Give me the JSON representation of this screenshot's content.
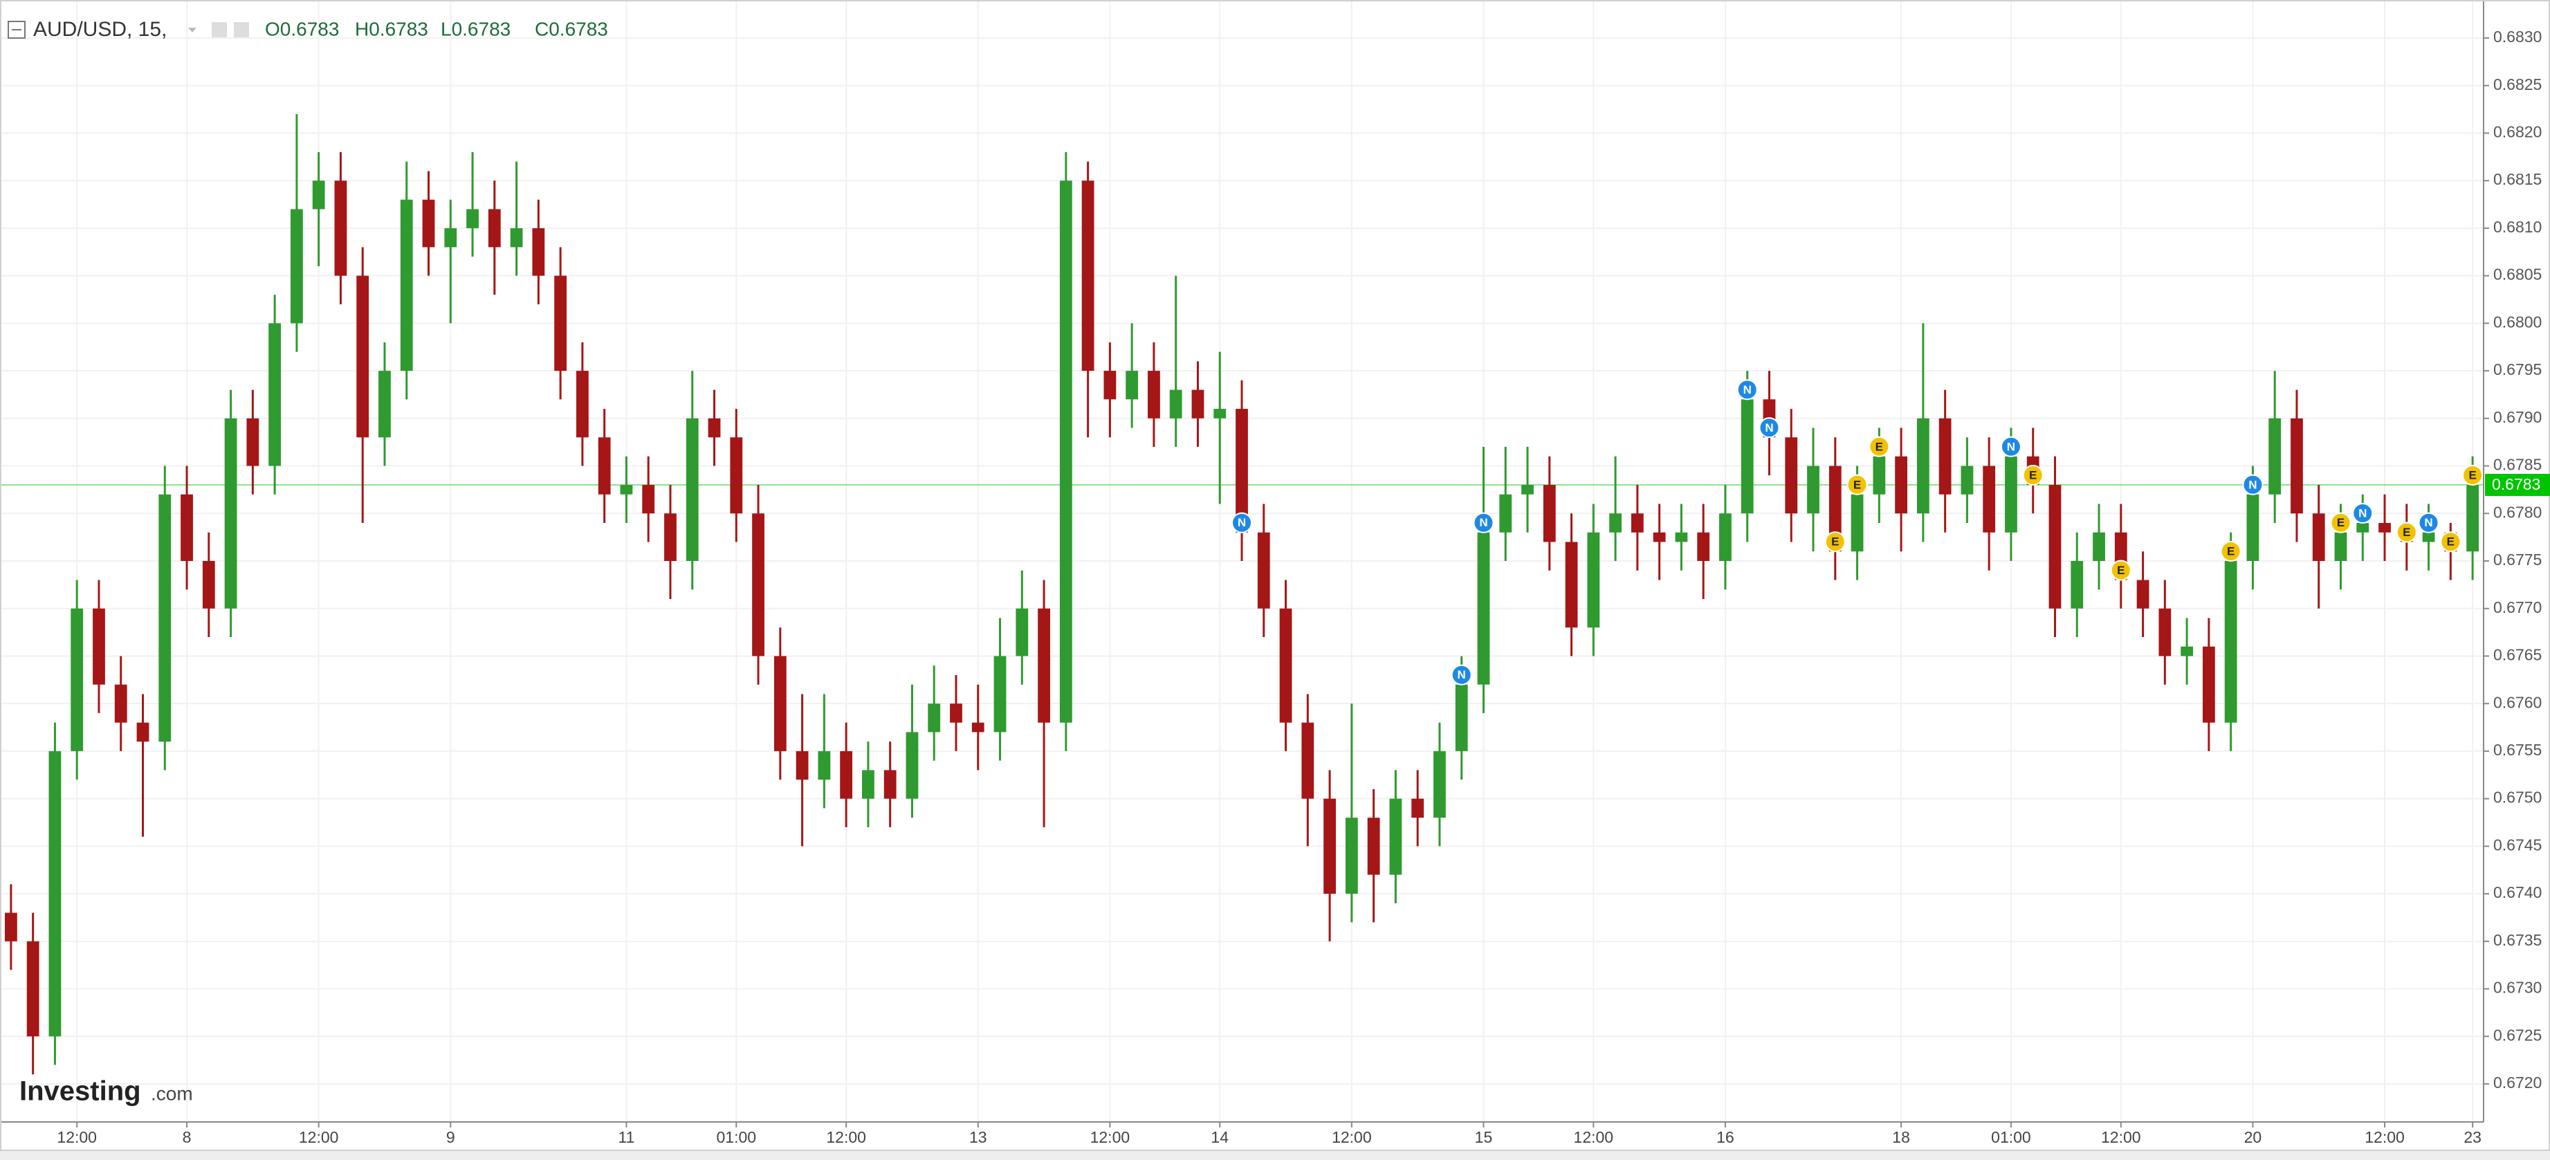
{
  "chart_data": {
    "type": "candlestick",
    "symbol": "AUD/USD, 15,",
    "legend_ohlc": [
      "O0.6783",
      "H0.6783",
      "L0.6783",
      "C0.6783"
    ],
    "logo": {
      "brand": "Investing",
      "suffix": ".com"
    },
    "up_color": "#2f9a2f",
    "down_color": "#a51616",
    "grid": true,
    "ylim": [
      0.6716,
      0.6834
    ],
    "yticks": [
      {
        "value": 0.672,
        "label": "0.6720"
      },
      {
        "value": 0.6725,
        "label": "0.6725"
      },
      {
        "value": 0.673,
        "label": "0.6730"
      },
      {
        "value": 0.6735,
        "label": "0.6735"
      },
      {
        "value": 0.674,
        "label": "0.6740"
      },
      {
        "value": 0.6745,
        "label": "0.6745"
      },
      {
        "value": 0.675,
        "label": "0.6750"
      },
      {
        "value": 0.6755,
        "label": "0.6755"
      },
      {
        "value": 0.676,
        "label": "0.6760"
      },
      {
        "value": 0.6765,
        "label": "0.6765"
      },
      {
        "value": 0.677,
        "label": "0.6770"
      },
      {
        "value": 0.6775,
        "label": "0.6775"
      },
      {
        "value": 0.678,
        "label": "0.6780"
      },
      {
        "value": 0.6785,
        "label": "0.6785"
      },
      {
        "value": 0.679,
        "label": "0.6790"
      },
      {
        "value": 0.6795,
        "label": "0.6795"
      },
      {
        "value": 0.68,
        "label": "0.6800"
      },
      {
        "value": 0.6805,
        "label": "0.6805"
      },
      {
        "value": 0.681,
        "label": "0.6810"
      },
      {
        "value": 0.6815,
        "label": "0.6815"
      },
      {
        "value": 0.682,
        "label": "0.6820"
      },
      {
        "value": 0.6825,
        "label": "0.6825"
      },
      {
        "value": 0.683,
        "label": "0.6830"
      }
    ],
    "last_price": {
      "value": 0.6783,
      "label": "0.6783",
      "color": "#00c400"
    },
    "categories": [
      null,
      null,
      null,
      "12:00",
      null,
      null,
      null,
      null,
      "8",
      null,
      null,
      null,
      null,
      null,
      "12:00",
      null,
      null,
      null,
      null,
      null,
      "9",
      null,
      null,
      null,
      null,
      null,
      null,
      null,
      "11",
      null,
      null,
      null,
      null,
      "01:00",
      null,
      null,
      null,
      null,
      "12:00",
      null,
      null,
      null,
      null,
      null,
      "13",
      null,
      null,
      null,
      null,
      null,
      "12:00",
      null,
      null,
      null,
      null,
      "14",
      null,
      null,
      null,
      null,
      null,
      "12:00",
      null,
      null,
      null,
      null,
      null,
      "15",
      null,
      null,
      null,
      null,
      "12:00",
      null,
      null,
      null,
      null,
      null,
      "16",
      null,
      null,
      null,
      null,
      null,
      null,
      null,
      "18",
      null,
      null,
      null,
      null,
      "01:00",
      null,
      null,
      null,
      null,
      "12:00",
      null,
      null,
      null,
      null,
      null,
      "20",
      null,
      null,
      null,
      null,
      null,
      "12:00",
      null,
      null,
      null,
      "23"
    ],
    "open": [
      0.6738,
      0.6735,
      0.6725,
      0.6755,
      0.677,
      0.6762,
      0.6758,
      0.6756,
      0.6782,
      0.6775,
      0.677,
      0.679,
      0.6785,
      0.68,
      0.6812,
      0.6815,
      0.6805,
      0.6788,
      0.6795,
      0.6813,
      0.6808,
      0.681,
      0.6812,
      0.6808,
      0.681,
      0.6805,
      0.6795,
      0.6788,
      0.6782,
      0.6783,
      0.678,
      0.6775,
      0.679,
      0.6788,
      0.678,
      0.6765,
      0.6755,
      0.6752,
      0.6755,
      0.675,
      0.6753,
      0.675,
      0.6757,
      0.676,
      0.6758,
      0.6757,
      0.6765,
      0.677,
      0.6758,
      0.6815,
      0.6795,
      0.6792,
      0.6795,
      0.679,
      0.6793,
      0.679,
      0.6791,
      0.6778,
      0.677,
      0.6758,
      0.675,
      0.674,
      0.6748,
      0.6742,
      0.675,
      0.6748,
      0.6755,
      0.6762,
      0.6778,
      0.6782,
      0.6783,
      0.6777,
      0.6768,
      0.6778,
      0.678,
      0.6778,
      0.6777,
      0.6778,
      0.6775,
      0.678,
      0.6792,
      0.6788,
      0.678,
      0.6785,
      0.6776,
      0.6782,
      0.6786,
      0.678,
      0.679,
      0.6782,
      0.6785,
      0.6778,
      0.6786,
      0.6783,
      0.677,
      0.6775,
      0.6778,
      0.6773,
      0.677,
      0.6765,
      0.6766,
      0.6758,
      0.6775,
      0.6782,
      0.679,
      0.678,
      0.6775,
      0.6778,
      0.6779,
      0.6778,
      0.6777,
      0.6778,
      0.6776
    ],
    "high": [
      0.6741,
      0.6738,
      0.6758,
      0.6773,
      0.6773,
      0.6765,
      0.6761,
      0.6785,
      0.6785,
      0.6778,
      0.6793,
      0.6793,
      0.6803,
      0.6822,
      0.6818,
      0.6818,
      0.6808,
      0.6798,
      0.6817,
      0.6816,
      0.6813,
      0.6818,
      0.6815,
      0.6817,
      0.6813,
      0.6808,
      0.6798,
      0.6791,
      0.6786,
      0.6786,
      0.6783,
      0.6795,
      0.6793,
      0.6791,
      0.6783,
      0.6768,
      0.6761,
      0.6761,
      0.6758,
      0.6756,
      0.6756,
      0.6762,
      0.6764,
      0.6763,
      0.6762,
      0.6769,
      0.6774,
      0.6773,
      0.6818,
      0.6817,
      0.6798,
      0.68,
      0.6798,
      0.6805,
      0.6796,
      0.6797,
      0.6794,
      0.6781,
      0.6773,
      0.6761,
      0.6753,
      0.676,
      0.6751,
      0.6753,
      0.6753,
      0.6758,
      0.6765,
      0.6787,
      0.6787,
      0.6787,
      0.6786,
      0.678,
      0.6781,
      0.6786,
      0.6783,
      0.6781,
      0.6781,
      0.6781,
      0.6783,
      0.6795,
      0.6795,
      0.6791,
      0.6789,
      0.6788,
      0.6785,
      0.6789,
      0.6789,
      0.68,
      0.6793,
      0.6788,
      0.6788,
      0.6789,
      0.6789,
      0.6786,
      0.6778,
      0.6781,
      0.6781,
      0.6776,
      0.6773,
      0.6769,
      0.6769,
      0.6778,
      0.6785,
      0.6795,
      0.6793,
      0.6783,
      0.6781,
      0.6782,
      0.6782,
      0.6781,
      0.6781,
      0.6779,
      0.6786
    ],
    "low": [
      0.6732,
      0.6721,
      0.6722,
      0.6752,
      0.6759,
      0.6755,
      0.6746,
      0.6753,
      0.6772,
      0.6767,
      0.6767,
      0.6782,
      0.6782,
      0.6797,
      0.6806,
      0.6802,
      0.6779,
      0.6785,
      0.6792,
      0.6805,
      0.68,
      0.6807,
      0.6803,
      0.6805,
      0.6802,
      0.6792,
      0.6785,
      0.6779,
      0.6779,
      0.6777,
      0.6771,
      0.6772,
      0.6785,
      0.6777,
      0.6762,
      0.6752,
      0.6745,
      0.6749,
      0.6747,
      0.6747,
      0.6747,
      0.6748,
      0.6754,
      0.6755,
      0.6753,
      0.6754,
      0.6762,
      0.6747,
      0.6755,
      0.6788,
      0.6788,
      0.6789,
      0.6787,
      0.6787,
      0.6787,
      0.6781,
      0.6775,
      0.6767,
      0.6755,
      0.6745,
      0.6735,
      0.6737,
      0.6737,
      0.6739,
      0.6745,
      0.6745,
      0.6752,
      0.6759,
      0.6775,
      0.6778,
      0.6774,
      0.6765,
      0.6765,
      0.6775,
      0.6774,
      0.6773,
      0.6774,
      0.6771,
      0.6772,
      0.6777,
      0.6784,
      0.6777,
      0.6776,
      0.6773,
      0.6773,
      0.6779,
      0.6776,
      0.6777,
      0.6778,
      0.6779,
      0.6774,
      0.6775,
      0.678,
      0.6767,
      0.6767,
      0.6772,
      0.677,
      0.6767,
      0.6762,
      0.6762,
      0.6755,
      0.6755,
      0.6772,
      0.6779,
      0.6777,
      0.677,
      0.6772,
      0.6775,
      0.6775,
      0.6774,
      0.6774,
      0.6773,
      0.6773
    ],
    "close": [
      0.6735,
      0.6725,
      0.6755,
      0.677,
      0.6762,
      0.6758,
      0.6756,
      0.6782,
      0.6775,
      0.677,
      0.679,
      0.6785,
      0.68,
      0.6812,
      0.6815,
      0.6805,
      0.6788,
      0.6795,
      0.6813,
      0.6808,
      0.681,
      0.6812,
      0.6808,
      0.681,
      0.6805,
      0.6795,
      0.6788,
      0.6782,
      0.6783,
      0.678,
      0.6775,
      0.679,
      0.6788,
      0.678,
      0.6765,
      0.6755,
      0.6752,
      0.6755,
      0.675,
      0.6753,
      0.675,
      0.6757,
      0.676,
      0.6758,
      0.6757,
      0.6765,
      0.677,
      0.6758,
      0.6815,
      0.6795,
      0.6792,
      0.6795,
      0.679,
      0.6793,
      0.679,
      0.6791,
      0.6778,
      0.677,
      0.6758,
      0.675,
      0.674,
      0.6748,
      0.6742,
      0.675,
      0.6748,
      0.6755,
      0.6762,
      0.6778,
      0.6782,
      0.6783,
      0.6777,
      0.6768,
      0.6778,
      0.678,
      0.6778,
      0.6777,
      0.6778,
      0.6775,
      0.678,
      0.6792,
      0.6788,
      0.678,
      0.6785,
      0.6776,
      0.6782,
      0.6786,
      0.678,
      0.679,
      0.6782,
      0.6785,
      0.6778,
      0.6786,
      0.6783,
      0.677,
      0.6775,
      0.6778,
      0.6773,
      0.677,
      0.6765,
      0.6766,
      0.6758,
      0.6775,
      0.6782,
      0.679,
      0.678,
      0.6775,
      0.6778,
      0.6779,
      0.6778,
      0.6777,
      0.6778,
      0.6776,
      0.6783
    ],
    "events": [
      null,
      null,
      null,
      null,
      null,
      null,
      null,
      null,
      null,
      null,
      null,
      null,
      null,
      null,
      null,
      null,
      null,
      null,
      null,
      null,
      null,
      null,
      null,
      null,
      null,
      null,
      null,
      null,
      null,
      null,
      null,
      null,
      null,
      null,
      null,
      null,
      null,
      null,
      null,
      null,
      null,
      null,
      null,
      null,
      null,
      null,
      null,
      null,
      null,
      null,
      null,
      null,
      null,
      null,
      null,
      null,
      "N",
      null,
      null,
      null,
      null,
      null,
      null,
      null,
      null,
      null,
      "N",
      "N",
      null,
      null,
      null,
      null,
      null,
      null,
      null,
      null,
      null,
      null,
      null,
      "N",
      "N",
      null,
      null,
      "E",
      "E",
      "E",
      null,
      null,
      null,
      null,
      null,
      "N",
      "E",
      null,
      null,
      null,
      "E",
      null,
      null,
      null,
      null,
      "E",
      "N",
      null,
      null,
      null,
      "E",
      "N",
      null,
      "E",
      "N",
      "E",
      "E"
    ],
    "event_colors": {
      "N": "#1e88e5",
      "E": "#f2c200"
    }
  }
}
